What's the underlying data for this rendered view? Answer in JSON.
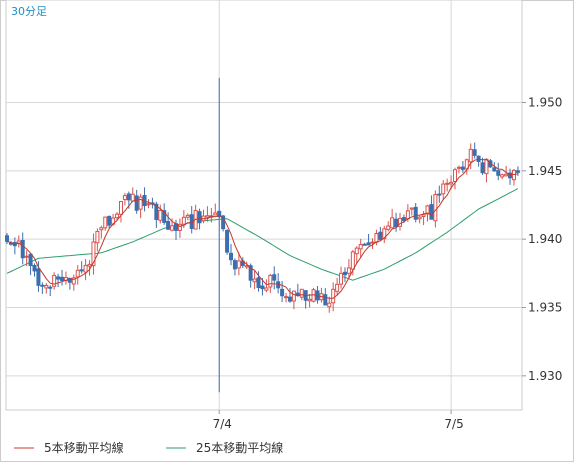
{
  "chart_data": {
    "type": "candlestick",
    "timeframe_label": "30分足",
    "y_axis": {
      "ylim": [
        1.9275,
        1.9575
      ],
      "ticks": [
        "1.930",
        "1.935",
        "1.940",
        "1.945",
        "1.950"
      ],
      "tick_values": [
        1.93,
        1.935,
        1.94,
        1.945,
        1.95
      ]
    },
    "x_axis": {
      "ticks": [
        "7/4",
        "7/5"
      ],
      "tick_candle_index": [
        54,
        113
      ]
    },
    "grid": true,
    "legend_placement": "bottom-left",
    "colors": {
      "up": "#d9534f",
      "down": "#3b6fb0",
      "ma5": "#c0392b",
      "ma25": "#2e9e6a",
      "grid": "#d8d8d8",
      "border": "#cccccc",
      "timeframe": "#1e90c8"
    },
    "series": [
      {
        "name": "5本移動平均線",
        "color": "#c0392b"
      },
      {
        "name": "25本移動平均線",
        "color": "#2e9e6a"
      }
    ],
    "close_anchors": [
      [
        0,
        1.9395
      ],
      [
        4,
        1.9392
      ],
      [
        8,
        1.937
      ],
      [
        12,
        1.9368
      ],
      [
        16,
        1.937
      ],
      [
        20,
        1.9378
      ],
      [
        24,
        1.9408
      ],
      [
        28,
        1.942
      ],
      [
        30,
        1.943
      ],
      [
        34,
        1.9425
      ],
      [
        38,
        1.9418
      ],
      [
        42,
        1.941
      ],
      [
        46,
        1.9412
      ],
      [
        50,
        1.9418
      ],
      [
        54,
        1.9415
      ],
      [
        56,
        1.939
      ],
      [
        60,
        1.9378
      ],
      [
        64,
        1.9368
      ],
      [
        68,
        1.9368
      ],
      [
        72,
        1.936
      ],
      [
        76,
        1.9358
      ],
      [
        80,
        1.9362
      ],
      [
        82,
        1.935
      ],
      [
        84,
        1.9365
      ],
      [
        88,
        1.9385
      ],
      [
        92,
        1.9398
      ],
      [
        96,
        1.9405
      ],
      [
        100,
        1.9415
      ],
      [
        104,
        1.9418
      ],
      [
        108,
        1.942
      ],
      [
        110,
        1.9435
      ],
      [
        114,
        1.945
      ],
      [
        118,
        1.9462
      ],
      [
        120,
        1.9455
      ],
      [
        126,
        1.9448
      ],
      [
        130,
        1.945
      ]
    ],
    "special_candles": [
      {
        "index": 54,
        "high": 1.9518,
        "low": 1.9288
      }
    ],
    "ma25_anchors": [
      [
        0,
        1.9375
      ],
      [
        8,
        1.9386
      ],
      [
        16,
        1.9388
      ],
      [
        24,
        1.939
      ],
      [
        32,
        1.9398
      ],
      [
        40,
        1.9408
      ],
      [
        48,
        1.9413
      ],
      [
        56,
        1.9415
      ],
      [
        64,
        1.9402
      ],
      [
        72,
        1.9388
      ],
      [
        80,
        1.9378
      ],
      [
        88,
        1.937
      ],
      [
        96,
        1.9378
      ],
      [
        104,
        1.939
      ],
      [
        112,
        1.9405
      ],
      [
        120,
        1.9422
      ],
      [
        130,
        1.9437
      ]
    ]
  }
}
